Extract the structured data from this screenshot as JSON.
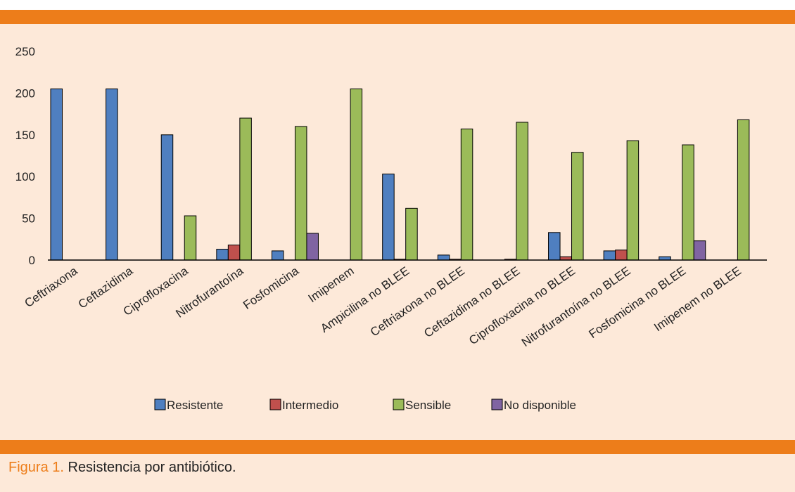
{
  "caption": {
    "label": "Figura 1",
    "separator": ".",
    "text": " Resistencia por antibiótico."
  },
  "colors": {
    "frame": "#ed7d1a",
    "background": "#fde9d9",
    "Resistente": "#4f7fc0",
    "Intermedio": "#c0504d",
    "Sensible": "#9bbb59",
    "No disponible": "#8064a2"
  },
  "chart_data": {
    "type": "bar",
    "title": "",
    "xlabel": "",
    "ylabel": "",
    "ylim": [
      0,
      250
    ],
    "yticks": [
      0,
      50,
      100,
      150,
      200,
      250
    ],
    "grid": false,
    "legend": "bottom",
    "categories": [
      "Ceftriaxona",
      "Ceftazidima",
      "Ciprofloxacina",
      "Nitrofurantoína",
      "Fosfomicina",
      "Imipenem",
      "Ampicilina no BLEE",
      "Ceftriaxona no BLEE",
      "Ceftazidima no BLEE",
      "Ciprofloxacina no BLEE",
      "Nitrofurantoína no BLEE",
      "Fosfomicina no BLEE",
      "Imipenem no BLEE"
    ],
    "series": [
      {
        "name": "Resistente",
        "values": [
          205,
          205,
          150,
          13,
          11,
          0,
          103,
          6,
          0,
          33,
          11,
          4,
          0
        ]
      },
      {
        "name": "Intermedio",
        "values": [
          0,
          0,
          0,
          18,
          0,
          0,
          1,
          1,
          1,
          4,
          12,
          0,
          0
        ]
      },
      {
        "name": "Sensible",
        "values": [
          0,
          0,
          53,
          170,
          160,
          205,
          62,
          157,
          165,
          129,
          143,
          138,
          168
        ]
      },
      {
        "name": "No disponible",
        "values": [
          0,
          0,
          0,
          0,
          32,
          0,
          0,
          0,
          0,
          0,
          0,
          23,
          0
        ]
      }
    ]
  }
}
